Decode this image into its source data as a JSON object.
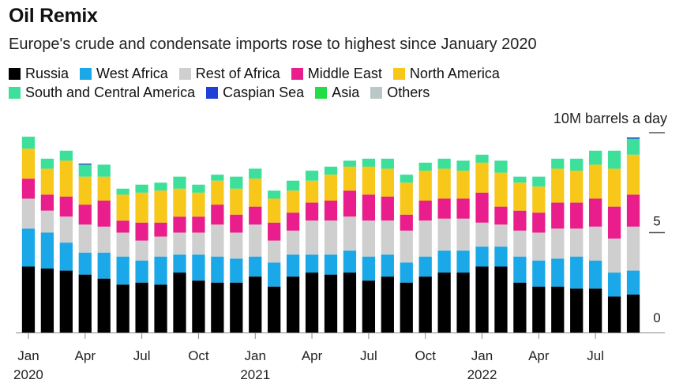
{
  "title": "Oil Remix",
  "subtitle": "Europe's crude and condensate imports rose to highest since January 2020",
  "chart_data": {
    "type": "bar",
    "stacked": true,
    "ylabel": "10M barrels a day",
    "ylim": [
      0,
      10
    ],
    "yticks": [
      {
        "value": 0,
        "label": "0"
      },
      {
        "value": 5,
        "label": "5"
      },
      {
        "value": 10,
        "label": ""
      }
    ],
    "categories": [
      "Jan 2020",
      "Feb 2020",
      "Mar 2020",
      "Apr 2020",
      "May 2020",
      "Jun 2020",
      "Jul 2020",
      "Aug 2020",
      "Sep 2020",
      "Oct 2020",
      "Nov 2020",
      "Dec 2020",
      "Jan 2021",
      "Feb 2021",
      "Mar 2021",
      "Apr 2021",
      "May 2021",
      "Jun 2021",
      "Jul 2021",
      "Aug 2021",
      "Sep 2021",
      "Oct 2021",
      "Nov 2021",
      "Dec 2021",
      "Jan 2022",
      "Feb 2022",
      "Mar 2022",
      "Apr 2022",
      "May 2022",
      "Jun 2022",
      "Jul 2022",
      "Aug 2022",
      "Sep 2022"
    ],
    "xticks": [
      {
        "index": 0,
        "label": "Jan",
        "sub": "2020"
      },
      {
        "index": 3,
        "label": "Apr",
        "sub": ""
      },
      {
        "index": 6,
        "label": "Jul",
        "sub": ""
      },
      {
        "index": 9,
        "label": "Oct",
        "sub": ""
      },
      {
        "index": 12,
        "label": "Jan",
        "sub": "2021"
      },
      {
        "index": 15,
        "label": "Apr",
        "sub": ""
      },
      {
        "index": 18,
        "label": "Jul",
        "sub": ""
      },
      {
        "index": 21,
        "label": "Oct",
        "sub": ""
      },
      {
        "index": 24,
        "label": "Jan",
        "sub": "2022"
      },
      {
        "index": 27,
        "label": "Apr",
        "sub": ""
      },
      {
        "index": 30,
        "label": "Jul",
        "sub": ""
      }
    ],
    "series": [
      {
        "name": "Russia",
        "color": "#000000",
        "values": [
          3.3,
          3.2,
          3.1,
          2.9,
          2.7,
          2.4,
          2.5,
          2.4,
          3.0,
          2.6,
          2.5,
          2.5,
          2.8,
          2.3,
          2.8,
          3.0,
          2.9,
          3.0,
          2.6,
          2.8,
          2.5,
          2.8,
          3.0,
          3.0,
          3.3,
          3.3,
          2.5,
          2.3,
          2.3,
          2.2,
          2.2,
          1.8,
          1.9
        ]
      },
      {
        "name": "West Africa",
        "color": "#1aa8e8",
        "values": [
          1.9,
          1.8,
          1.4,
          1.1,
          1.3,
          1.4,
          1.1,
          1.4,
          0.9,
          1.3,
          1.3,
          1.2,
          1.0,
          1.2,
          1.1,
          0.9,
          1.0,
          1.1,
          1.2,
          1.1,
          1.0,
          1.0,
          1.1,
          1.1,
          1.0,
          1.0,
          1.3,
          1.3,
          1.4,
          1.6,
          1.4,
          1.2,
          1.2
        ]
      },
      {
        "name": "Rest of Africa",
        "color": "#cfcfcf",
        "values": [
          1.5,
          1.1,
          1.3,
          1.4,
          1.3,
          1.2,
          1.0,
          1.0,
          1.1,
          1.1,
          1.6,
          1.3,
          1.6,
          1.1,
          1.2,
          1.7,
          1.7,
          1.7,
          1.8,
          1.7,
          1.6,
          1.8,
          1.6,
          1.6,
          1.2,
          1.1,
          1.3,
          1.4,
          1.5,
          1.4,
          1.7,
          1.7,
          2.2
        ]
      },
      {
        "name": "Middle East",
        "color": "#e91e8c",
        "values": [
          1.0,
          0.8,
          1.0,
          1.0,
          1.3,
          0.6,
          0.9,
          0.7,
          0.8,
          0.8,
          1.0,
          0.9,
          0.9,
          0.9,
          0.9,
          0.9,
          1.0,
          1.3,
          1.3,
          1.2,
          0.8,
          1.0,
          1.0,
          1.0,
          1.5,
          0.9,
          1.0,
          1.0,
          1.3,
          1.3,
          1.4,
          1.6,
          1.6
        ]
      },
      {
        "name": "North America",
        "color": "#f7c71a",
        "values": [
          1.5,
          1.3,
          1.8,
          1.4,
          1.2,
          1.3,
          1.5,
          1.6,
          1.4,
          1.2,
          1.2,
          1.3,
          1.4,
          1.2,
          1.1,
          1.1,
          1.3,
          1.2,
          1.4,
          1.4,
          1.6,
          1.5,
          1.5,
          1.4,
          1.5,
          1.7,
          1.4,
          1.3,
          1.7,
          1.6,
          1.7,
          1.9,
          2.0
        ]
      },
      {
        "name": "South and Central America",
        "color": "#3de09a",
        "values": [
          0.6,
          0.5,
          0.5,
          0.6,
          0.6,
          0.3,
          0.4,
          0.4,
          0.6,
          0.4,
          0.3,
          0.6,
          0.5,
          0.4,
          0.5,
          0.5,
          0.4,
          0.3,
          0.4,
          0.5,
          0.4,
          0.4,
          0.5,
          0.5,
          0.4,
          0.6,
          0.3,
          0.5,
          0.5,
          0.6,
          0.7,
          0.9,
          0.8
        ]
      },
      {
        "name": "Caspian Sea",
        "color": "#1f3fd6",
        "values": [
          0,
          0,
          0,
          0.05,
          0,
          0,
          0,
          0,
          0,
          0,
          0,
          0,
          0,
          0,
          0,
          0,
          0,
          0,
          0,
          0,
          0,
          0,
          0,
          0,
          0,
          0,
          0,
          0,
          0,
          0,
          0,
          0,
          0.06
        ]
      },
      {
        "name": "Asia",
        "color": "#22dd44",
        "values": [
          0,
          0,
          0,
          0,
          0,
          0,
          0,
          0,
          0,
          0,
          0,
          0,
          0,
          0,
          0,
          0,
          0,
          0,
          0,
          0,
          0,
          0,
          0,
          0,
          0,
          0,
          0,
          0,
          0,
          0,
          0,
          0,
          0
        ]
      },
      {
        "name": "Others",
        "color": "#b9c7c7",
        "values": [
          0,
          0,
          0,
          0,
          0,
          0,
          0,
          0,
          0,
          0,
          0,
          0,
          0,
          0,
          0,
          0,
          0,
          0,
          0,
          0,
          0,
          0,
          0,
          0,
          0,
          0,
          0,
          0,
          0,
          0,
          0,
          0,
          0
        ]
      }
    ]
  }
}
